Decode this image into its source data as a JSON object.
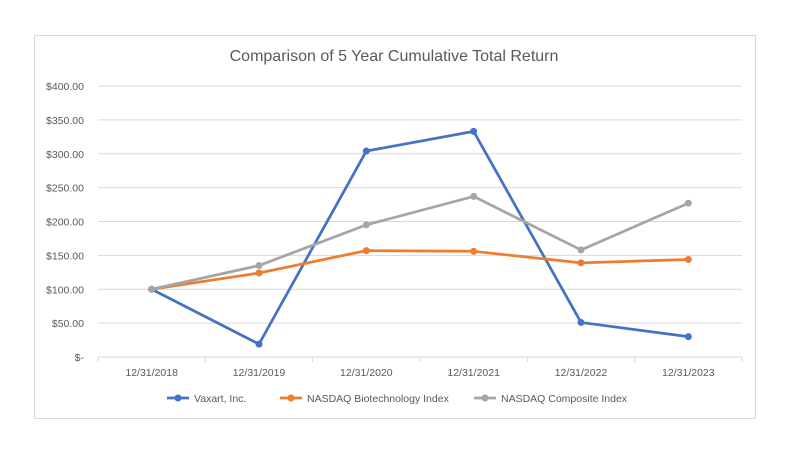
{
  "chart_data": {
    "type": "line",
    "title": "Comparison of 5 Year Cumulative Total Return",
    "categories": [
      "12/31/2018",
      "12/31/2019",
      "12/31/2020",
      "12/31/2021",
      "12/31/2022",
      "12/31/2023"
    ],
    "y_ticks": [
      "$-",
      "$50.00",
      "$100.00",
      "$150.00",
      "$200.00",
      "$250.00",
      "$300.00",
      "$350.00",
      "$400.00"
    ],
    "ylim": [
      0,
      400
    ],
    "grid": true,
    "legend_position": "bottom",
    "series": [
      {
        "name": "Vaxart, Inc.",
        "color": "#4472C4",
        "values": [
          100,
          19,
          304,
          333,
          51,
          30
        ]
      },
      {
        "name": "NASDAQ Biotechnology Index",
        "color": "#ED7D31",
        "values": [
          100,
          124,
          157,
          156,
          139,
          144
        ]
      },
      {
        "name": "NASDAQ Composite Index",
        "color": "#A5A5A5",
        "values": [
          100,
          135,
          195,
          237,
          158,
          227
        ]
      }
    ]
  }
}
